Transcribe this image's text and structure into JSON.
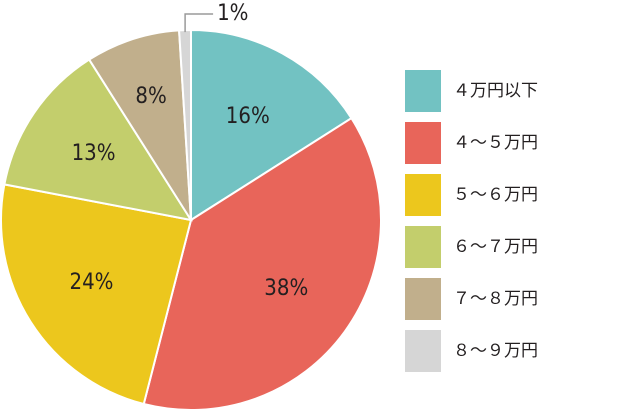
{
  "chart_data": {
    "type": "pie",
    "title": "",
    "legend_position": "right",
    "slices": [
      {
        "label": "４万円以下",
        "value": 16,
        "display": "16%",
        "color": "#72c2c2"
      },
      {
        "label": "４～５万円",
        "value": 38,
        "display": "38%",
        "color": "#e8655a"
      },
      {
        "label": "５～６万円",
        "value": 24,
        "display": "24%",
        "color": "#ecc71d"
      },
      {
        "label": "６～７万円",
        "value": 13,
        "display": "13%",
        "color": "#c3ce6c"
      },
      {
        "label": "７～８万円",
        "value": 8,
        "display": "8%",
        "color": "#c1af8c"
      },
      {
        "label": "８～９万円",
        "value": 1,
        "display": "1%",
        "color": "#d6d6d6"
      }
    ]
  }
}
